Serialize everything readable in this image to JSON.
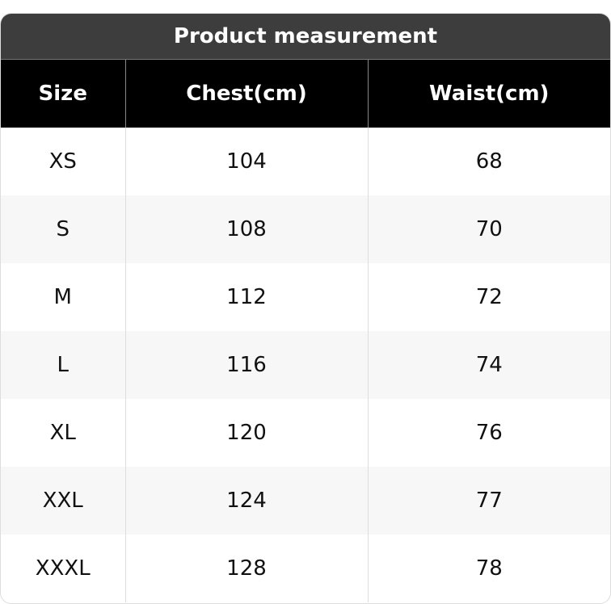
{
  "title": "Product measurement",
  "headers": [
    "Size",
    "Chest(cm)",
    "Waist(cm)"
  ],
  "rows": [
    [
      "XS",
      "104",
      "68"
    ],
    [
      "S",
      "108",
      "70"
    ],
    [
      "M",
      "112",
      "72"
    ],
    [
      "L",
      "116",
      "74"
    ],
    [
      "XL",
      "120",
      "76"
    ],
    [
      "XXL",
      "124",
      "77"
    ],
    [
      "XXXL",
      "128",
      "78"
    ]
  ]
}
